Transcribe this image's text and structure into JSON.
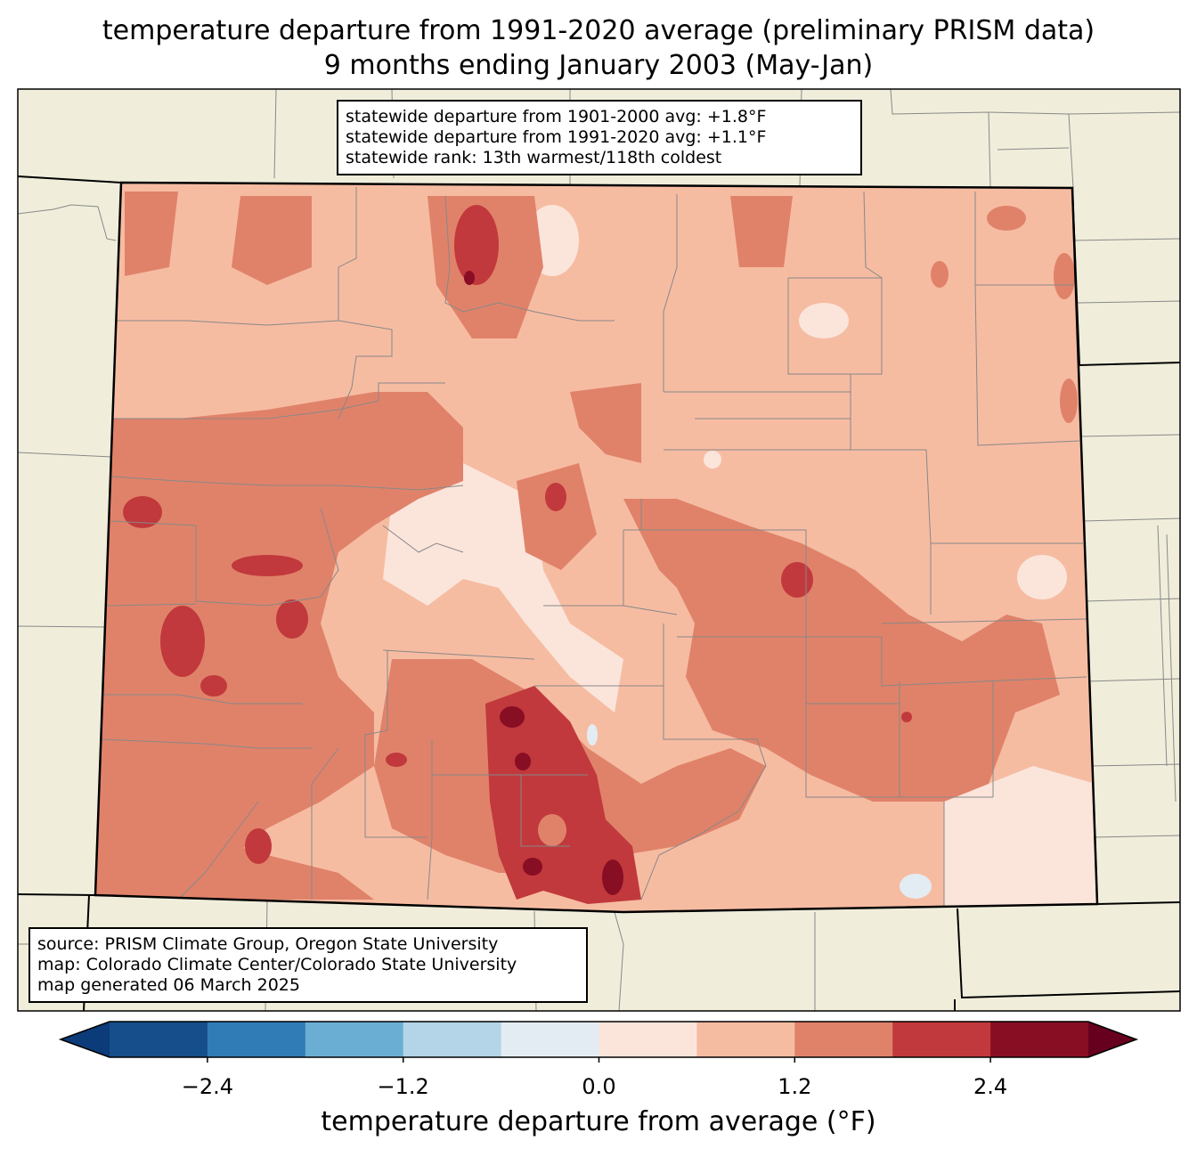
{
  "title": {
    "line1": "temperature departure from 1991-2020 average (preliminary PRISM data)",
    "line2": "9 months ending January 2003 (May-Jan)"
  },
  "stats": {
    "line1": "statewide departure from 1901-2000 avg: +1.8°F",
    "line2": "statewide departure from 1991-2020 avg: +1.1°F",
    "line3": "statewide rank: 13th warmest/118th coldest"
  },
  "source": {
    "line1": "source: PRISM Climate Group, Oregon State University",
    "line2": "map: Colorado Climate Center/Colorado State University",
    "line3": "map generated 06 March 2025"
  },
  "colorbar": {
    "label": "temperature departure from average (°F)",
    "ticks": [
      "−2.4",
      "−1.2",
      "0.0",
      "1.2",
      "2.4"
    ],
    "tick_values": [
      -2.4,
      -1.2,
      0.0,
      1.2,
      2.4
    ],
    "range": [
      -3.0,
      3.0
    ],
    "colors": [
      "#0b3b78",
      "#154e8a",
      "#2f7cb6",
      "#6baed4",
      "#b3d5e7",
      "#e4ecf3",
      "#fbe5db",
      "#f6bca2",
      "#e0826a",
      "#c1393c",
      "#880e24",
      "#67001f"
    ]
  },
  "colors": {
    "land": "#f0eedb",
    "base": "#f6bca2",
    "light": "#fbe5db",
    "mid": "#e0826a",
    "red": "#c1393c",
    "dark": "#880e24",
    "coolest": "#e4ecf3"
  }
}
